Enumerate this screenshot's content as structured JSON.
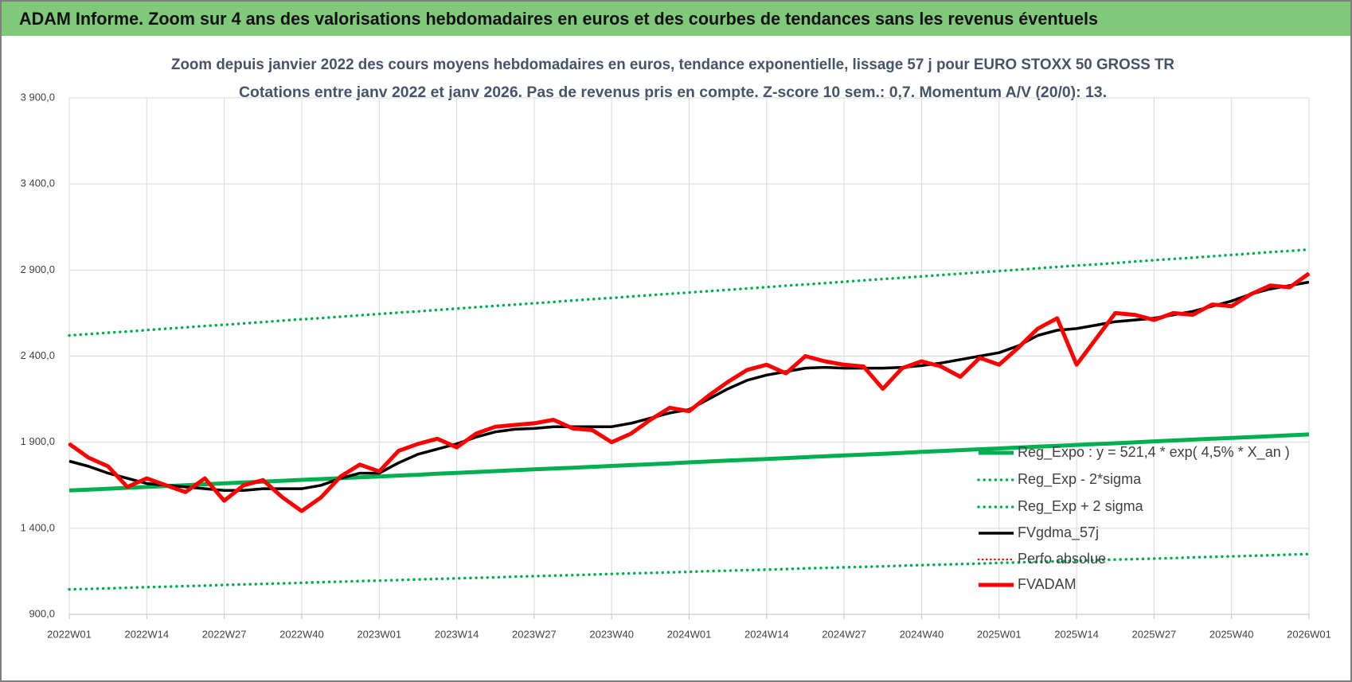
{
  "header": {
    "title": "ADAM Informe. Zoom sur 4 ans des valorisations hebdomadaires en euros et des courbes de tendances sans les revenus éventuels"
  },
  "chart_data": {
    "type": "line",
    "title": "Zoom depuis janvier 2022 des cours moyens hebdomadaires en euros, tendance exponentielle, lissage 57 j pour EURO STOXX 50 GROSS TR",
    "subtitle": "Cotations entre janv 2022 et janv 2026. Pas de revenus pris en compte. Z-score 10 sem.: 0,7. Momentum A/V (20/0):  13.",
    "categories": [
      "2022W01",
      null,
      null,
      null,
      "2022W14",
      null,
      null,
      null,
      "2022W27",
      null,
      null,
      null,
      "2022W40",
      null,
      null,
      null,
      "2023W01",
      null,
      null,
      null,
      "2023W14",
      null,
      null,
      null,
      "2023W27",
      null,
      null,
      null,
      "2023W40",
      null,
      null,
      null,
      "2024W01",
      null,
      null,
      null,
      "2024W14",
      null,
      null,
      null,
      "2024W27",
      null,
      null,
      null,
      "2024W40",
      null,
      null,
      null,
      "2025W01",
      null,
      null,
      null,
      "2025W14",
      null,
      null,
      null,
      "2025W27",
      null,
      null,
      null,
      "2025W40",
      null,
      null,
      null,
      "2026W01"
    ],
    "ylim": [
      900,
      3900
    ],
    "yticks": [
      {
        "value": 900,
        "label": "900,0"
      },
      {
        "value": 1400,
        "label": "1 400,0"
      },
      {
        "value": 1900,
        "label": "1 900,0"
      },
      {
        "value": 2400,
        "label": "2 400,0"
      },
      {
        "value": 2900,
        "label": "2 900,0"
      },
      {
        "value": 3400,
        "label": "3 400,0"
      },
      {
        "value": 3900,
        "label": "3 900,0"
      }
    ],
    "grid": true,
    "legend": "right",
    "series": [
      {
        "name": "Reg_Expo : y = 521,4 * exp( 4,5% *  X_an )",
        "color": "#00b050",
        "style": "solid",
        "width": 5,
        "values": [
          1620,
          1625,
          1630,
          1635,
          1640,
          1645,
          1650,
          1656,
          1661,
          1666,
          1671,
          1676,
          1681,
          1686,
          1691,
          1696,
          1701,
          1706,
          1711,
          1717,
          1722,
          1727,
          1732,
          1737,
          1742,
          1747,
          1752,
          1757,
          1762,
          1767,
          1772,
          1777,
          1783,
          1788,
          1793,
          1798,
          1803,
          1808,
          1813,
          1818,
          1823,
          1828,
          1833,
          1838,
          1844,
          1849,
          1854,
          1859,
          1864,
          1869,
          1874,
          1879,
          1884,
          1889,
          1894,
          1899,
          1905,
          1910,
          1915,
          1920,
          1925,
          1930,
          1935,
          1940,
          1945
        ]
      },
      {
        "name": "Reg_Exp - 2*sigma",
        "color": "#00b050",
        "style": "dotted",
        "width": 3.5,
        "values": [
          1045,
          1048,
          1051,
          1055,
          1058,
          1061,
          1064,
          1067,
          1071,
          1074,
          1077,
          1080,
          1083,
          1087,
          1090,
          1093,
          1096,
          1099,
          1103,
          1106,
          1109,
          1112,
          1115,
          1119,
          1122,
          1125,
          1128,
          1131,
          1135,
          1138,
          1141,
          1144,
          1147,
          1151,
          1154,
          1157,
          1160,
          1163,
          1167,
          1170,
          1173,
          1176,
          1179,
          1183,
          1186,
          1189,
          1192,
          1195,
          1199,
          1202,
          1205,
          1208,
          1211,
          1215,
          1218,
          1221,
          1224,
          1227,
          1231,
          1234,
          1237,
          1240,
          1243,
          1247,
          1250
        ]
      },
      {
        "name": "Reg_Exp + 2 sigma",
        "color": "#00b050",
        "style": "dotted",
        "width": 3.5,
        "values": [
          2520,
          2528,
          2536,
          2543,
          2551,
          2559,
          2567,
          2575,
          2582,
          2590,
          2598,
          2606,
          2614,
          2621,
          2629,
          2637,
          2645,
          2653,
          2660,
          2668,
          2676,
          2684,
          2692,
          2699,
          2707,
          2715,
          2723,
          2731,
          2738,
          2746,
          2754,
          2762,
          2770,
          2777,
          2785,
          2793,
          2801,
          2809,
          2816,
          2824,
          2832,
          2840,
          2848,
          2855,
          2863,
          2871,
          2879,
          2887,
          2894,
          2902,
          2910,
          2918,
          2926,
          2933,
          2941,
          2949,
          2957,
          2965,
          2972,
          2980,
          2988,
          2996,
          3004,
          3011,
          3019
        ]
      },
      {
        "name": "FVgdma_57j",
        "color": "#000000",
        "style": "solid",
        "width": 3.5,
        "values": [
          1790,
          1760,
          1720,
          1690,
          1660,
          1650,
          1640,
          1630,
          1620,
          1620,
          1630,
          1630,
          1630,
          1650,
          1690,
          1720,
          1720,
          1780,
          1830,
          1860,
          1890,
          1930,
          1960,
          1975,
          1980,
          1990,
          1990,
          1990,
          1990,
          2010,
          2040,
          2070,
          2090,
          2150,
          2210,
          2260,
          2290,
          2310,
          2330,
          2335,
          2330,
          2330,
          2330,
          2335,
          2345,
          2360,
          2380,
          2400,
          2420,
          2460,
          2520,
          2550,
          2560,
          2580,
          2600,
          2610,
          2620,
          2640,
          2660,
          2690,
          2720,
          2760,
          2790,
          2810,
          2830
        ]
      },
      {
        "name": "Perfo absolue",
        "color": "#ff0000",
        "style": "dotted",
        "width": 2.5,
        "values": [
          1890,
          1810,
          1760,
          1640,
          1690,
          1650,
          1610,
          1690,
          1560,
          1650,
          1680,
          1580,
          1500,
          1580,
          1700,
          1770,
          1730,
          1850,
          1890,
          1920,
          1870,
          1950,
          1990,
          2000,
          2010,
          2030,
          1980,
          1970,
          1900,
          1950,
          2030,
          2100,
          2080,
          2170,
          2250,
          2320,
          2350,
          2300,
          2400,
          2370,
          2350,
          2340,
          2210,
          2330,
          2370,
          2340,
          2280,
          2390,
          2350,
          2450,
          2560,
          2620,
          2350,
          2500,
          2650,
          2640,
          2610,
          2650,
          2640,
          2700,
          2690,
          2760,
          2810,
          2800,
          2880
        ]
      },
      {
        "name": "FVADAM",
        "color": "#ff0000",
        "style": "solid",
        "width": 5,
        "values": [
          1890,
          1810,
          1760,
          1640,
          1690,
          1650,
          1610,
          1690,
          1560,
          1650,
          1680,
          1580,
          1500,
          1580,
          1700,
          1770,
          1730,
          1850,
          1890,
          1920,
          1870,
          1950,
          1990,
          2000,
          2010,
          2030,
          1980,
          1970,
          1900,
          1950,
          2030,
          2100,
          2080,
          2170,
          2250,
          2320,
          2350,
          2300,
          2400,
          2370,
          2350,
          2340,
          2210,
          2330,
          2370,
          2340,
          2280,
          2390,
          2350,
          2450,
          2560,
          2620,
          2350,
          2500,
          2650,
          2640,
          2610,
          2650,
          2640,
          2700,
          2690,
          2760,
          2810,
          2800,
          2880
        ]
      }
    ]
  }
}
